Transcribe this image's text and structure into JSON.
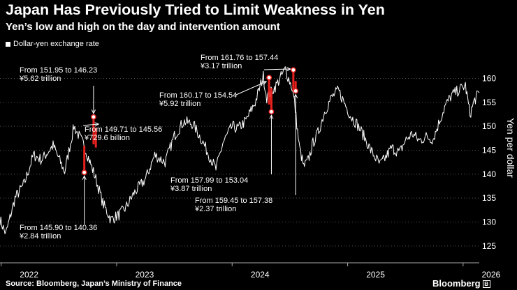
{
  "title": "Japan Has Previously Tried to Limit Weakness in Yen",
  "subtitle": "Yen’s low and high on the day and intervention amount",
  "legend_label": "Dollar-yen exchange rate",
  "source": "Source: Bloomberg, Japan’s Ministry of Finance",
  "brand": "Bloomberg",
  "colors": {
    "background": "#000000",
    "line": "#ffffff",
    "intervention": "#e8211e",
    "axis": "#aaaaaa"
  },
  "chart_data": {
    "type": "line",
    "series_label": "Dollar-yen exchange rate",
    "ylabel": "Yen per dollar",
    "ylim": [
      122.5,
      164
    ],
    "yticks": [
      125,
      130,
      135,
      140,
      145,
      150,
      155,
      160
    ],
    "xlim": [
      2021.99,
      2026.14
    ],
    "xticks": [
      {
        "label": "2022",
        "x": 2022.0
      },
      {
        "label": "2023",
        "x": 2023.0
      },
      {
        "label": "2024",
        "x": 2024.0
      },
      {
        "label": "2025",
        "x": 2025.0
      },
      {
        "label": "2026",
        "x": 2026.0
      }
    ],
    "anchors": [
      [
        2021.99,
        130.5
      ],
      [
        2022.04,
        127.5
      ],
      [
        2022.12,
        135
      ],
      [
        2022.2,
        138
      ],
      [
        2022.28,
        144
      ],
      [
        2022.35,
        143
      ],
      [
        2022.45,
        146
      ],
      [
        2022.55,
        140.5
      ],
      [
        2022.63,
        150
      ],
      [
        2022.72,
        145.9
      ],
      [
        2022.82,
        139
      ],
      [
        2022.88,
        134
      ],
      [
        2022.95,
        130.5
      ],
      [
        2023.02,
        131.5
      ],
      [
        2023.08,
        133
      ],
      [
        2023.15,
        136
      ],
      [
        2023.25,
        139
      ],
      [
        2023.33,
        144
      ],
      [
        2023.42,
        142.5
      ],
      [
        2023.5,
        148
      ],
      [
        2023.58,
        151
      ],
      [
        2023.66,
        150.5
      ],
      [
        2023.74,
        147
      ],
      [
        2023.8,
        144
      ],
      [
        2023.86,
        141
      ],
      [
        2023.92,
        146.5
      ],
      [
        2024.0,
        150
      ],
      [
        2024.05,
        149.5
      ],
      [
        2024.12,
        151.2
      ],
      [
        2024.2,
        155
      ],
      [
        2024.27,
        160.5
      ],
      [
        2024.3,
        156
      ],
      [
        2024.38,
        158.5
      ],
      [
        2024.46,
        161.9
      ],
      [
        2024.52,
        158
      ],
      [
        2024.54,
        155
      ],
      [
        2024.58,
        146
      ],
      [
        2024.62,
        141.5
      ],
      [
        2024.66,
        143
      ],
      [
        2024.7,
        146.5
      ],
      [
        2024.75,
        149
      ],
      [
        2024.8,
        153
      ],
      [
        2024.86,
        156
      ],
      [
        2024.92,
        157.5
      ],
      [
        2024.97,
        155
      ],
      [
        2025.03,
        152
      ],
      [
        2025.08,
        150.5
      ],
      [
        2025.14,
        148
      ],
      [
        2025.2,
        145
      ],
      [
        2025.28,
        142
      ],
      [
        2025.33,
        143.5
      ],
      [
        2025.38,
        145.5
      ],
      [
        2025.45,
        144.5
      ],
      [
        2025.5,
        147
      ],
      [
        2025.56,
        148.5
      ],
      [
        2025.62,
        147
      ],
      [
        2025.68,
        147.8
      ],
      [
        2025.74,
        147.3
      ],
      [
        2025.78,
        150
      ],
      [
        2025.84,
        154
      ],
      [
        2025.9,
        156.5
      ],
      [
        2025.96,
        157.5
      ],
      [
        2026.02,
        158.5
      ],
      [
        2026.06,
        152.5
      ],
      [
        2026.1,
        155.5
      ],
      [
        2026.14,
        157
      ]
    ],
    "interventions": [
      {
        "x": 2022.72,
        "high": 145.9,
        "low": 140.36,
        "label_lines": [
          "From 145.90 to 140.36",
          "¥2.84 trillion"
        ]
      },
      {
        "x": 2022.8,
        "high": 151.95,
        "low": 146.23,
        "label_lines": [
          "From 151.95 to 146.23",
          "¥5.62 trillion"
        ]
      },
      {
        "x": 2022.82,
        "high": 149.71,
        "low": 145.56,
        "label_lines": [
          "From 149.71 to 145.56",
          "¥729.6 billion"
        ]
      },
      {
        "x": 2024.32,
        "high": 160.17,
        "low": 154.54,
        "label_lines": [
          "From 160.17 to 154.54",
          "¥5.92 trillion"
        ]
      },
      {
        "x": 2024.34,
        "high": 157.99,
        "low": 153.04,
        "label_lines": [
          "From 157.99 to 153.04",
          "¥3.87 trillion"
        ]
      },
      {
        "x": 2024.53,
        "high": 161.76,
        "low": 157.44,
        "label_lines": [
          "From 161.76 to 157.44",
          "¥3.17 trillion"
        ]
      },
      {
        "x": 2024.55,
        "high": 159.45,
        "low": 157.38,
        "label_lines": [
          "From 159.45 to 157.38",
          "¥2.37 trillion"
        ]
      }
    ]
  }
}
